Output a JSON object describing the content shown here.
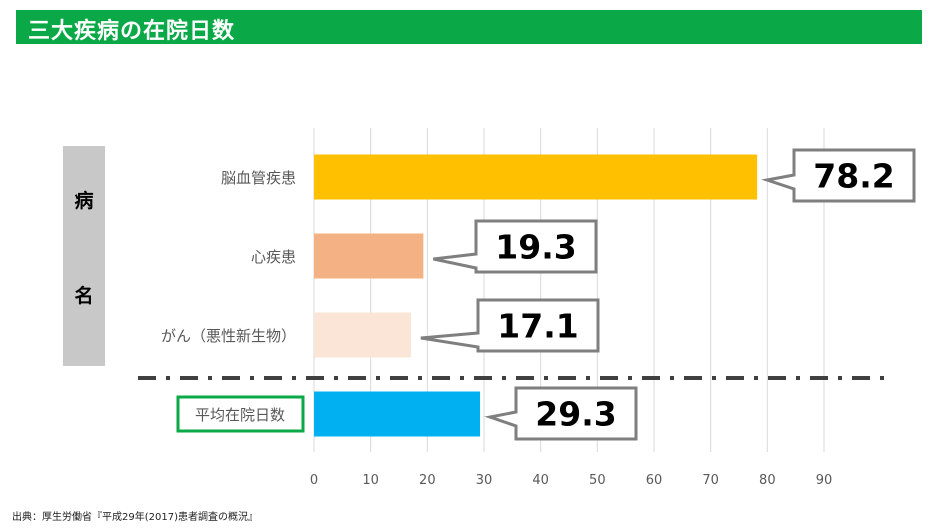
{
  "header": {
    "title": "三大疾病の在院日数"
  },
  "side_label": {
    "top": "病",
    "bottom": "名"
  },
  "source": "出典：厚生労働省『平成29年(2017)患者調査の概況』",
  "colors": {
    "header_bg": "#0aa846",
    "grid": "#d9d9d9",
    "callout_border": "#7f7f7f",
    "highlight_border": "#0aa846"
  },
  "chart_data": {
    "type": "bar",
    "orientation": "horizontal",
    "title": "",
    "xlabel": "",
    "ylabel": "病名",
    "xlim": [
      0,
      90
    ],
    "ticks": [
      0,
      10,
      20,
      30,
      40,
      50,
      60,
      70,
      80,
      90
    ],
    "grid": true,
    "categories": [
      "脳血管疾患",
      "心疾患",
      "がん（悪性新生物）",
      "平均在院日数"
    ],
    "values": [
      78.2,
      19.3,
      17.1,
      29.3
    ],
    "value_labels": [
      "78.2",
      "19.3",
      "17.1",
      "29.3"
    ],
    "bar_colors": [
      "#ffc000",
      "#f4b183",
      "#fbe5d6",
      "#00b0f0"
    ],
    "highlighted_category": "平均在院日数"
  }
}
